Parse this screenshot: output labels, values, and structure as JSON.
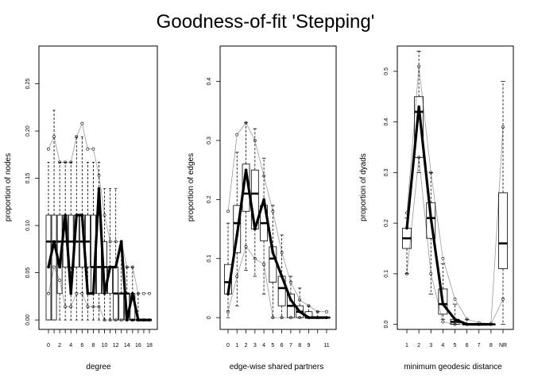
{
  "figure": {
    "title": "Goodness-of-fit 'Stepping'"
  },
  "chart_data": [
    {
      "type": "box",
      "xlabel": "degree",
      "ylabel": "proportion of nodes",
      "ylim": [
        -0.01,
        0.29
      ],
      "yticks": [
        0,
        0.05,
        0.1,
        0.15,
        0.2,
        0.25
      ],
      "ytick_labels": [
        "0.00",
        "0.05",
        "0.10",
        "0.15",
        "0.20",
        "0.25"
      ],
      "categories": [
        "0",
        "1",
        "2",
        "3",
        "4",
        "5",
        "6",
        "7",
        "8",
        "9",
        "10",
        "11",
        "12",
        "13",
        "14",
        "15",
        "16",
        "17",
        "18"
      ],
      "xtick_labels": [
        "0",
        "",
        "2",
        "",
        "4",
        "",
        "6",
        "",
        "8",
        "",
        "10",
        "",
        "12",
        "",
        "14",
        "",
        "16",
        "",
        "18"
      ],
      "boxes": [
        {
          "min": 0,
          "q1": 0,
          "med": 0.083,
          "q3": 0.111,
          "max": 0.167
        },
        {
          "min": 0,
          "q1": 0,
          "med": 0.083,
          "q3": 0.111,
          "max": 0.222
        },
        {
          "min": 0,
          "q1": 0.028,
          "med": 0.083,
          "q3": 0.111,
          "max": 0.167
        },
        {
          "min": 0,
          "q1": 0.056,
          "med": 0.083,
          "q3": 0.111,
          "max": 0.167
        },
        {
          "min": 0,
          "q1": 0.056,
          "med": 0.083,
          "q3": 0.111,
          "max": 0.167
        },
        {
          "min": 0,
          "q1": 0.056,
          "med": 0.083,
          "q3": 0.111,
          "max": 0.194
        },
        {
          "min": 0,
          "q1": 0.056,
          "med": 0.083,
          "q3": 0.111,
          "max": 0.194
        },
        {
          "min": 0,
          "q1": 0.056,
          "med": 0.083,
          "q3": 0.111,
          "max": 0.167
        },
        {
          "min": 0,
          "q1": 0.028,
          "med": 0.056,
          "q3": 0.111,
          "max": 0.167
        },
        {
          "min": 0,
          "q1": 0.028,
          "med": 0.056,
          "q3": 0.111,
          "max": 0.167
        },
        {
          "min": 0,
          "q1": 0.028,
          "med": 0.056,
          "q3": 0.083,
          "max": 0.139
        },
        {
          "min": 0,
          "q1": 0.028,
          "med": 0.056,
          "q3": 0.056,
          "max": 0.139
        },
        {
          "min": 0,
          "q1": 0,
          "med": 0.028,
          "q3": 0.056,
          "max": 0.139
        },
        {
          "min": 0,
          "q1": 0,
          "med": 0.028,
          "q3": 0.028,
          "max": 0.083
        },
        {
          "min": 0,
          "q1": 0,
          "med": 0.028,
          "q3": 0.028,
          "max": 0.056
        },
        {
          "min": 0,
          "q1": 0,
          "med": 0,
          "q3": 0.028,
          "max": 0.056
        },
        {
          "min": 0,
          "q1": 0,
          "med": 0,
          "q3": 0,
          "max": 0.028
        },
        {
          "min": 0,
          "q1": 0,
          "med": 0,
          "q3": 0,
          "max": 0
        },
        {
          "min": 0,
          "q1": 0,
          "med": 0,
          "q3": 0,
          "max": 0
        }
      ],
      "observed": [
        0.056,
        0.083,
        0.056,
        0.111,
        0.028,
        0.111,
        0.111,
        0.028,
        0.028,
        0.139,
        0.028,
        0.056,
        0.056,
        0.083,
        0,
        0.028,
        0,
        0,
        0
      ],
      "upper_band": [
        0.181,
        0.194,
        0.167,
        0.167,
        0.167,
        0.194,
        0.208,
        0.181,
        0.181,
        0.153,
        0.111,
        0.083,
        0.083,
        0.083,
        0.056,
        0.056,
        0.028,
        0.028,
        0.028
      ],
      "lower_band": [
        0.028,
        0.056,
        0.042,
        0.014,
        0.014,
        0.028,
        0.028,
        0.014,
        0.014,
        0.014,
        0,
        0,
        0,
        0,
        0,
        0,
        0,
        0,
        0
      ]
    },
    {
      "type": "box",
      "xlabel": "edge-wise shared partners",
      "ylabel": "proportion of edges",
      "ylim": [
        -0.02,
        0.46
      ],
      "yticks": [
        0,
        0.1,
        0.2,
        0.3,
        0.4
      ],
      "ytick_labels": [
        "0",
        "0.1",
        "0.2",
        "0.3",
        "0.4"
      ],
      "categories": [
        "0",
        "1",
        "2",
        "3",
        "4",
        "5",
        "6",
        "7",
        "8",
        "9",
        "10",
        "11"
      ],
      "xtick_labels": [
        "0",
        "1",
        "2",
        "3",
        "4",
        "5",
        "6",
        "7",
        "8",
        "9",
        "",
        "11"
      ],
      "boxes": [
        {
          "min": 0,
          "q1": 0.04,
          "med": 0.06,
          "q3": 0.09,
          "max": 0.16
        },
        {
          "min": 0.02,
          "q1": 0.11,
          "med": 0.16,
          "q3": 0.19,
          "max": 0.28
        },
        {
          "min": 0.08,
          "q1": 0.18,
          "med": 0.21,
          "q3": 0.26,
          "max": 0.33
        },
        {
          "min": 0.07,
          "q1": 0.15,
          "med": 0.21,
          "q3": 0.25,
          "max": 0.32
        },
        {
          "min": 0.04,
          "q1": 0.13,
          "med": 0.16,
          "q3": 0.19,
          "max": 0.27
        },
        {
          "min": 0,
          "q1": 0.06,
          "med": 0.1,
          "q3": 0.12,
          "max": 0.19
        },
        {
          "min": 0,
          "q1": 0.02,
          "med": 0.05,
          "q3": 0.07,
          "max": 0.14
        },
        {
          "min": 0,
          "q1": 0,
          "med": 0.02,
          "q3": 0.04,
          "max": 0.07
        },
        {
          "min": 0,
          "q1": 0,
          "med": 0.01,
          "q3": 0.02,
          "max": 0.05
        },
        {
          "min": 0,
          "q1": 0,
          "med": 0,
          "q3": 0.01,
          "max": 0.02
        },
        {
          "min": 0,
          "q1": 0,
          "med": 0,
          "q3": 0,
          "max": 0.01
        },
        {
          "min": 0,
          "q1": 0,
          "med": 0,
          "q3": 0,
          "max": 0
        }
      ],
      "observed": [
        0.04,
        0.14,
        0.25,
        0.15,
        0.2,
        0.11,
        0.07,
        0.03,
        0.01,
        0,
        0,
        0
      ],
      "upper_band": [
        0.18,
        0.31,
        0.33,
        0.3,
        0.24,
        0.18,
        0.11,
        0.06,
        0.03,
        0.02,
        0.01,
        0.01
      ],
      "lower_band": [
        0.01,
        0.07,
        0.12,
        0.1,
        0.09,
        0,
        0,
        0,
        0,
        0,
        0,
        0
      ]
    },
    {
      "type": "box",
      "xlabel": "minimum geodesic distance",
      "ylabel": "proportion of dyads",
      "ylim": [
        -0.01,
        0.55
      ],
      "yticks": [
        0,
        0.1,
        0.2,
        0.3,
        0.4,
        0.5
      ],
      "ytick_labels": [
        "0.0",
        "0.1",
        "0.2",
        "0.3",
        "0.4",
        "0.5"
      ],
      "categories": [
        "1",
        "2",
        "3",
        "4",
        "5",
        "6",
        "7",
        "8",
        "NR"
      ],
      "xtick_labels": [
        "1",
        "2",
        "3",
        "4",
        "5",
        "6",
        "7",
        "8",
        "NR"
      ],
      "boxes": [
        {
          "min": 0.1,
          "q1": 0.15,
          "med": 0.17,
          "q3": 0.19,
          "max": 0.21
        },
        {
          "min": 0.3,
          "q1": 0.33,
          "med": 0.42,
          "q3": 0.45,
          "max": 0.54
        },
        {
          "min": 0.06,
          "q1": 0.17,
          "med": 0.21,
          "q3": 0.24,
          "max": 0.3
        },
        {
          "min": 0.01,
          "q1": 0.02,
          "med": 0.04,
          "q3": 0.07,
          "max": 0.12
        },
        {
          "min": 0,
          "q1": 0,
          "med": 0.005,
          "q3": 0.01,
          "max": 0.04
        },
        {
          "min": 0,
          "q1": 0,
          "med": 0,
          "q3": 0,
          "max": 0.01
        },
        {
          "min": 0,
          "q1": 0,
          "med": 0,
          "q3": 0,
          "max": 0
        },
        {
          "min": 0,
          "q1": 0,
          "med": 0,
          "q3": 0,
          "max": 0
        },
        {
          "min": 0,
          "q1": 0.11,
          "med": 0.16,
          "q3": 0.26,
          "max": 0.48
        }
      ],
      "observed": [
        0.19,
        0.43,
        0.21,
        0.04,
        0.01,
        0,
        0,
        0,
        null
      ],
      "upper_band": [
        0.22,
        0.51,
        0.3,
        0.13,
        0.05,
        0.01,
        0.003,
        0.002,
        0.39
      ],
      "lower_band": [
        0.1,
        0.33,
        0.1,
        0.005,
        0,
        0,
        0,
        0,
        0.05
      ]
    }
  ]
}
